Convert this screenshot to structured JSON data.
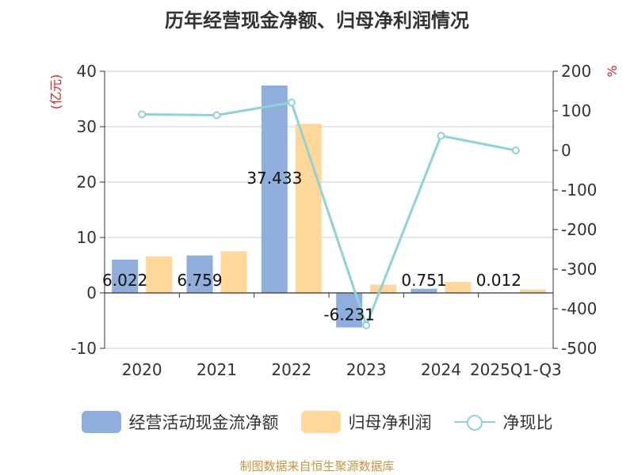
{
  "title": "历年经营现金净额、归母净利润情况",
  "source": "制图数据来自恒生聚源数据库",
  "colors": {
    "bar1": "#8faedb",
    "bar2": "#ffd899",
    "line": "#8ed3d8",
    "unit": "#e02020",
    "axis": "#333333",
    "grid": "#cccccc"
  },
  "chart_data": {
    "type": "bar",
    "categories": [
      "2020",
      "2021",
      "2022",
      "2023",
      "2024",
      "2025Q1-Q3"
    ],
    "series": [
      {
        "name": "经营活动现金流净额",
        "type": "bar",
        "axis": "left",
        "values": [
          6.022,
          6.759,
          37.433,
          -6.231,
          0.751,
          0.012
        ],
        "labels": [
          "6.022",
          "6.759",
          "37.433",
          "-6.231",
          "0.751",
          "0.012"
        ]
      },
      {
        "name": "归母净利润",
        "type": "bar",
        "axis": "left",
        "values": [
          6.6,
          7.5,
          30.5,
          1.5,
          2.0,
          0.6
        ]
      },
      {
        "name": "净现比",
        "type": "line",
        "axis": "right",
        "values": [
          91,
          89,
          121,
          -442,
          37,
          0
        ]
      }
    ],
    "y_left": {
      "label": "(亿元)",
      "ylim": [
        -10,
        40
      ],
      "ticks": [
        40,
        30,
        20,
        10,
        0,
        -10
      ]
    },
    "y_right": {
      "label": "%",
      "ylim": [
        -500,
        200
      ],
      "ticks": [
        200,
        100,
        0,
        -100,
        -200,
        -300,
        -400,
        -500
      ]
    },
    "grid": true,
    "legend_position": "bottom"
  }
}
